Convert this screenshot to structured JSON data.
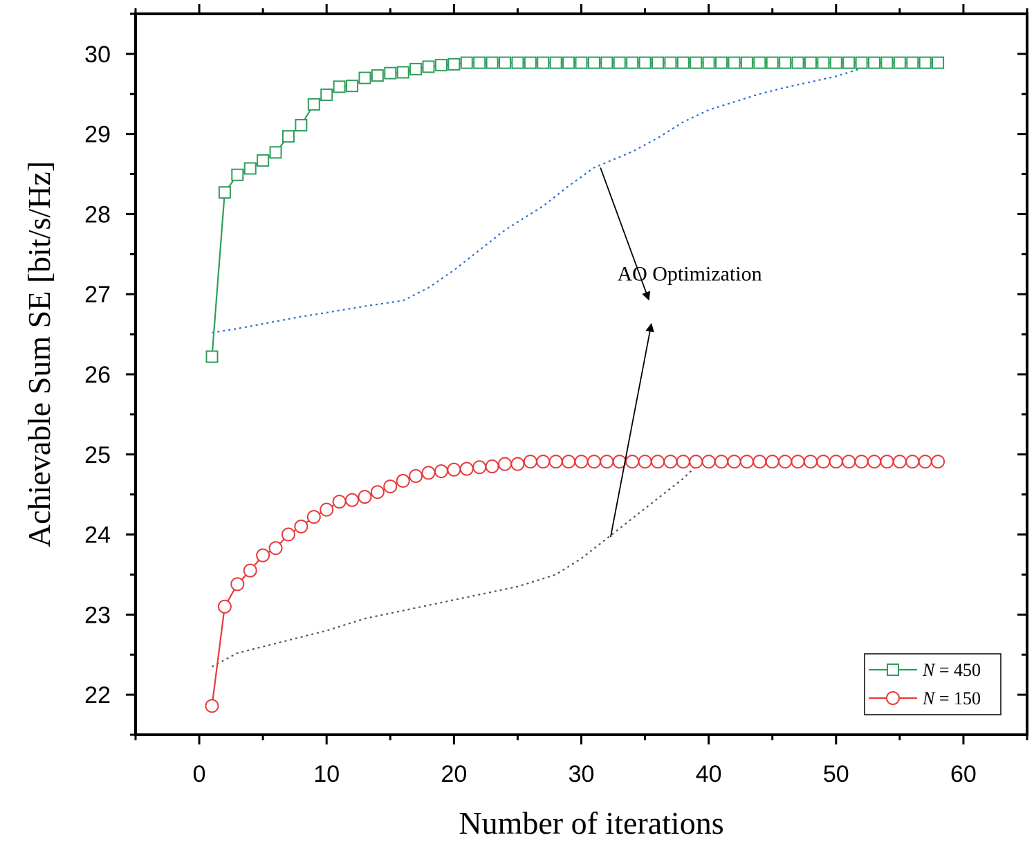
{
  "chart_data": {
    "type": "line",
    "title": "",
    "xlabel": "Number of iterations",
    "ylabel": "Achievable Sum SE [bit/s/Hz]",
    "xlim": [
      -5,
      65
    ],
    "ylim": [
      21.5,
      30.5
    ],
    "xticks": [
      0,
      10,
      20,
      30,
      40,
      50,
      60
    ],
    "yticks": [
      22,
      23,
      24,
      25,
      26,
      27,
      28,
      29,
      30
    ],
    "grid": false,
    "legend_position": "bottom-right",
    "series": [
      {
        "name": "N = 450",
        "legend_var": "N",
        "legend_rest": " = 450",
        "color": "#2e9e5b",
        "marker": "square",
        "x": [
          1,
          2,
          3,
          4,
          5,
          6,
          7,
          8,
          9,
          10,
          11,
          12,
          13,
          14,
          15,
          16,
          17,
          18,
          19,
          20,
          21,
          22,
          23,
          24,
          25,
          26,
          27,
          28,
          29,
          30,
          31,
          32,
          33,
          34,
          35,
          36,
          37,
          38,
          39,
          40,
          41,
          42,
          43,
          44,
          45,
          46,
          47,
          48,
          49,
          50,
          51,
          52,
          53,
          54,
          55,
          56,
          57,
          58
        ],
        "values": [
          26.22,
          28.27,
          28.49,
          28.57,
          28.67,
          28.77,
          28.97,
          29.11,
          29.37,
          29.49,
          29.59,
          29.6,
          29.7,
          29.73,
          29.76,
          29.77,
          29.81,
          29.84,
          29.86,
          29.87,
          29.89,
          29.89,
          29.89,
          29.89,
          29.89,
          29.89,
          29.89,
          29.89,
          29.89,
          29.89,
          29.89,
          29.89,
          29.89,
          29.89,
          29.89,
          29.89,
          29.89,
          29.89,
          29.89,
          29.89,
          29.89,
          29.89,
          29.89,
          29.89,
          29.89,
          29.89,
          29.89,
          29.89,
          29.89,
          29.89,
          29.89,
          29.89,
          29.89,
          29.89,
          29.89,
          29.89,
          29.89,
          29.89
        ]
      },
      {
        "name": "N = 150",
        "legend_var": "N",
        "legend_rest": " = 150",
        "color": "#e8393b",
        "marker": "circle",
        "x": [
          1,
          2,
          3,
          4,
          5,
          6,
          7,
          8,
          9,
          10,
          11,
          12,
          13,
          14,
          15,
          16,
          17,
          18,
          19,
          20,
          21,
          22,
          23,
          24,
          25,
          26,
          27,
          28,
          29,
          30,
          31,
          32,
          33,
          34,
          35,
          36,
          37,
          38,
          39,
          40,
          41,
          42,
          43,
          44,
          45,
          46,
          47,
          48,
          49,
          50,
          51,
          52,
          53,
          54,
          55,
          56,
          57,
          58
        ],
        "values": [
          21.86,
          23.1,
          23.38,
          23.55,
          23.74,
          23.83,
          24.0,
          24.1,
          24.22,
          24.31,
          24.41,
          24.43,
          24.47,
          24.53,
          24.6,
          24.67,
          24.73,
          24.77,
          24.79,
          24.81,
          24.82,
          24.84,
          24.85,
          24.88,
          24.88,
          24.91,
          24.91,
          24.91,
          24.91,
          24.91,
          24.91,
          24.91,
          24.91,
          24.91,
          24.91,
          24.91,
          24.91,
          24.91,
          24.91,
          24.91,
          24.91,
          24.91,
          24.91,
          24.91,
          24.91,
          24.91,
          24.91,
          24.91,
          24.91,
          24.91,
          24.91,
          24.91,
          24.91,
          24.91,
          24.91,
          24.91,
          24.91,
          24.91
        ]
      }
    ],
    "reference_curves": [
      {
        "name": "blue dotted baseline",
        "color": "#2a6fd6",
        "x": [
          1,
          3,
          5,
          8,
          10,
          13,
          16,
          18,
          20,
          22,
          24,
          27,
          29,
          31,
          34,
          36,
          38,
          40,
          42,
          44,
          46,
          48,
          50,
          52
        ],
        "values": [
          26.52,
          26.57,
          26.63,
          26.72,
          26.77,
          26.85,
          26.92,
          27.08,
          27.3,
          27.55,
          27.8,
          28.1,
          28.35,
          28.58,
          28.78,
          28.95,
          29.15,
          29.3,
          29.4,
          29.5,
          29.58,
          29.65,
          29.72,
          29.82
        ]
      },
      {
        "name": "grey dotted baseline",
        "color": "#555555",
        "x": [
          1,
          3,
          5,
          8,
          10,
          13,
          16,
          19,
          22,
          25,
          28,
          30,
          32,
          34,
          36,
          38,
          39
        ],
        "values": [
          22.35,
          22.52,
          22.6,
          22.72,
          22.8,
          22.95,
          23.05,
          23.15,
          23.25,
          23.35,
          23.5,
          23.7,
          23.95,
          24.2,
          24.45,
          24.7,
          24.85
        ]
      }
    ],
    "annotation": {
      "text": "AO Optimization",
      "x": 38.5,
      "y": 27.17,
      "arrows": [
        {
          "from": [
            31.5,
            28.58
          ],
          "to": [
            35.3,
            26.93
          ]
        },
        {
          "from": [
            32.3,
            23.97
          ],
          "to": [
            35.5,
            26.63
          ]
        }
      ]
    }
  }
}
